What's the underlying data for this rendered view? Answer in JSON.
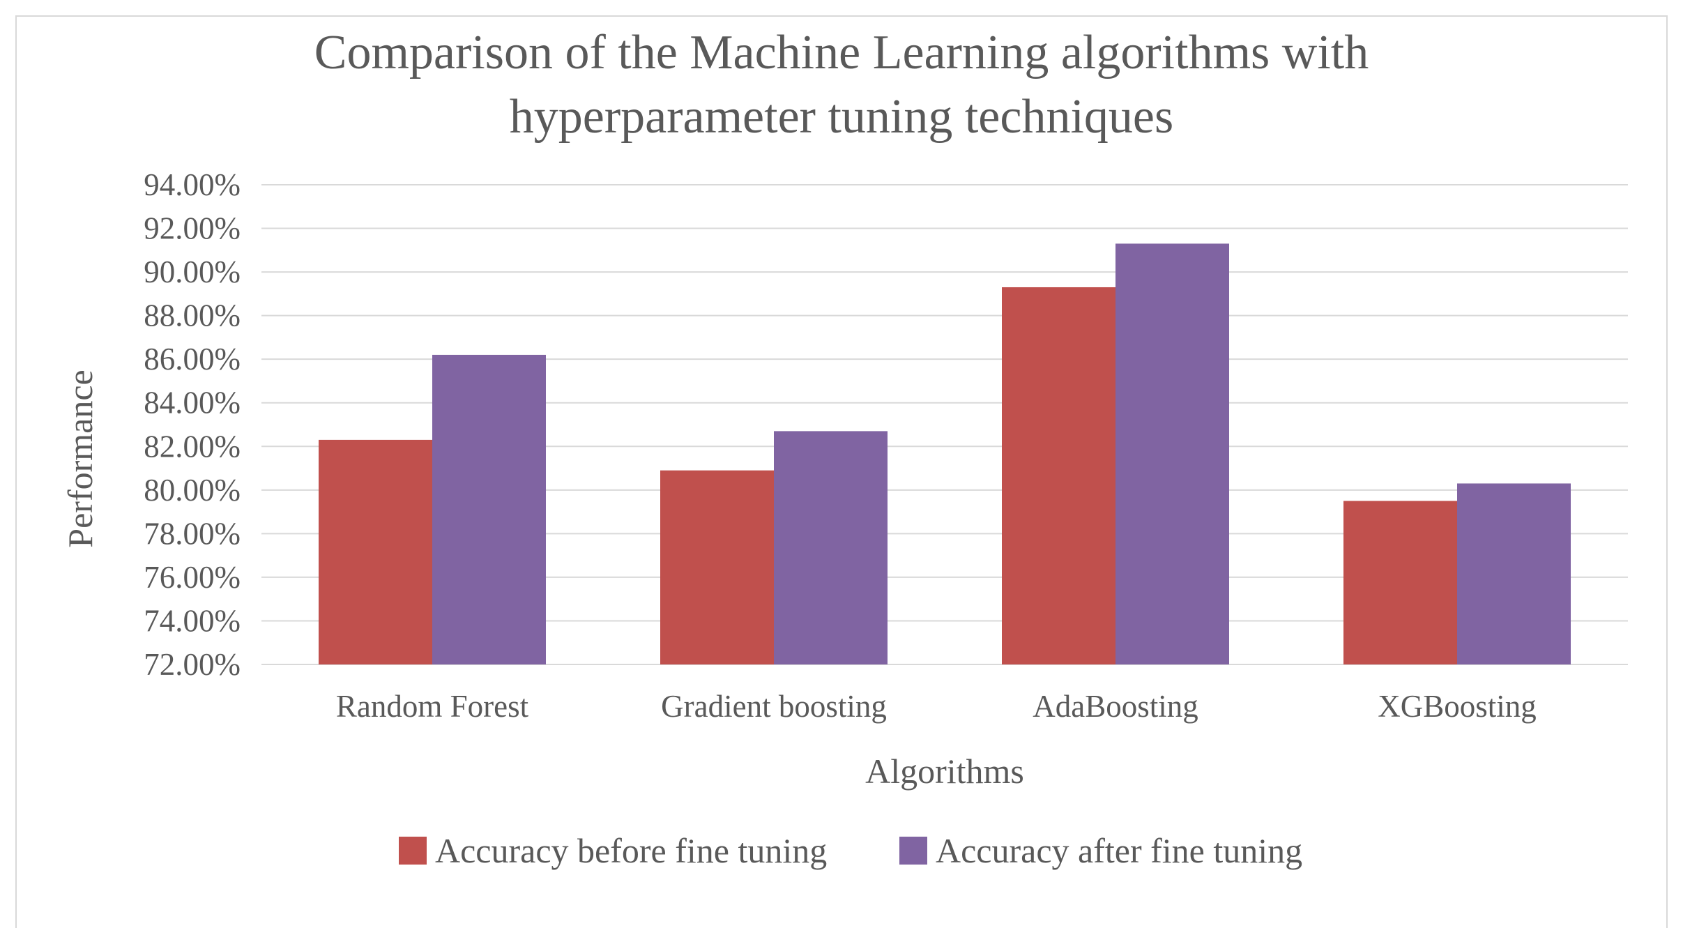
{
  "chart_data": {
    "type": "bar",
    "title": "Comparison of the Machine Learning algorithms with hyperparameter tuning techniques",
    "title_lines": [
      "Comparison of the Machine Learning algorithms with",
      "hyperparameter tuning techniques"
    ],
    "xlabel": "Algorithms",
    "ylabel": "Performance",
    "categories": [
      "Random Forest",
      "Gradient boosting",
      "AdaBoosting",
      "XGBoosting"
    ],
    "series": [
      {
        "name": "Accuracy before fine tuning",
        "color": "#c0504d",
        "values": [
          82.3,
          80.9,
          89.3,
          79.5
        ]
      },
      {
        "name": "Accuracy after fine tuning",
        "color": "#8064a2",
        "values": [
          86.2,
          82.7,
          91.3,
          80.3
        ]
      }
    ],
    "ylim": [
      72,
      94
    ],
    "ytick_step": 2,
    "ytick_labels": [
      "72.00%",
      "74.00%",
      "76.00%",
      "78.00%",
      "80.00%",
      "82.00%",
      "84.00%",
      "86.00%",
      "88.00%",
      "90.00%",
      "92.00%",
      "94.00%"
    ],
    "grid": true,
    "gridline_color": "#d9d9d9",
    "legend_position": "bottom"
  }
}
